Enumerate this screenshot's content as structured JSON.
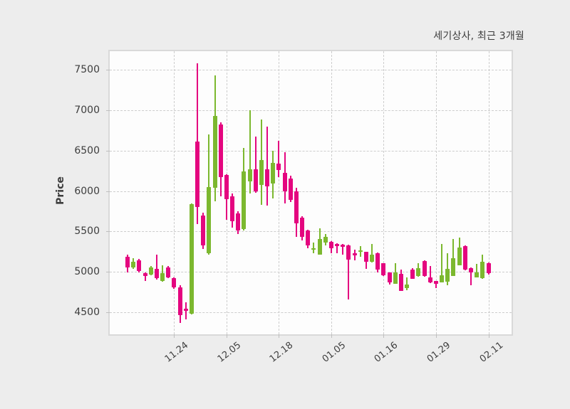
{
  "title": "세기상사, 최근 3개월",
  "y_axis": {
    "label": "Price"
  },
  "chart_data": {
    "type": "candlestick",
    "title": "세기상사, 최근 3개월",
    "ylabel": "Price",
    "ylim": [
      4230,
      7730
    ],
    "grid": true,
    "y_ticks": [
      4500,
      5000,
      5500,
      6000,
      6500,
      7000,
      7500
    ],
    "x_tick_labels": [
      "11.24",
      "12.05",
      "12.18",
      "01.05",
      "01.16",
      "01.29",
      "02.11"
    ],
    "x_tick_indices": [
      8,
      17,
      26,
      35,
      44,
      53,
      62
    ],
    "colors": {
      "up": "#7cb82f",
      "down": "#e4067f"
    },
    "ohlc_order": [
      "open",
      "high",
      "low",
      "close"
    ],
    "ohlc": [
      [
        5190,
        5215,
        4995,
        5055
      ],
      [
        5055,
        5170,
        5035,
        5125
      ],
      [
        5145,
        5160,
        4995,
        5010
      ],
      [
        4980,
        4990,
        4890,
        4950
      ],
      [
        4965,
        5070,
        4955,
        5055
      ],
      [
        5040,
        5215,
        4905,
        4920
      ],
      [
        4890,
        5080,
        4880,
        4980
      ],
      [
        5055,
        5070,
        4925,
        4935
      ],
      [
        4920,
        4930,
        4790,
        4810
      ],
      [
        4810,
        4835,
        4365,
        4465
      ],
      [
        4545,
        4620,
        4410,
        4520
      ],
      [
        4480,
        5845,
        4470,
        5835
      ],
      [
        6610,
        7580,
        5595,
        5805
      ],
      [
        5700,
        5730,
        5280,
        5330
      ],
      [
        5230,
        6700,
        5215,
        6050
      ],
      [
        6040,
        7430,
        5875,
        6930
      ],
      [
        6820,
        6845,
        5935,
        6175
      ],
      [
        6195,
        6205,
        5640,
        5900
      ],
      [
        5935,
        5965,
        5550,
        5625
      ],
      [
        5725,
        5745,
        5465,
        5510
      ],
      [
        5525,
        6530,
        5510,
        6245
      ],
      [
        6120,
        7000,
        5965,
        6265
      ],
      [
        6265,
        6675,
        5980,
        5995
      ],
      [
        6075,
        6880,
        5830,
        6380
      ],
      [
        6265,
        6800,
        5820,
        6060
      ],
      [
        6090,
        6500,
        5905,
        6345
      ],
      [
        6340,
        6620,
        6170,
        6260
      ],
      [
        6220,
        6480,
        5850,
        5995
      ],
      [
        6155,
        6185,
        5860,
        5890
      ],
      [
        5995,
        6040,
        5435,
        5600
      ],
      [
        5670,
        5685,
        5390,
        5435
      ],
      [
        5510,
        5520,
        5290,
        5330
      ],
      [
        5285,
        5360,
        5230,
        5295
      ],
      [
        5215,
        5540,
        5210,
        5405
      ],
      [
        5360,
        5465,
        5330,
        5435
      ],
      [
        5375,
        5380,
        5230,
        5290
      ],
      [
        5345,
        5350,
        5230,
        5320
      ],
      [
        5340,
        5345,
        5215,
        5310
      ],
      [
        5330,
        5335,
        4655,
        5155
      ],
      [
        5230,
        5275,
        5140,
        5200
      ],
      [
        5255,
        5320,
        5185,
        5265
      ],
      [
        5245,
        5250,
        5040,
        5125
      ],
      [
        5125,
        5345,
        5120,
        5215
      ],
      [
        5230,
        5235,
        4995,
        5025
      ],
      [
        5105,
        5110,
        4950,
        4960
      ],
      [
        4990,
        4995,
        4840,
        4870
      ],
      [
        4855,
        5105,
        4850,
        4990
      ],
      [
        4975,
        5030,
        4760,
        4765
      ],
      [
        4795,
        4930,
        4770,
        4840
      ],
      [
        5030,
        5045,
        4910,
        4915
      ],
      [
        4945,
        5105,
        4940,
        5045
      ],
      [
        5135,
        5140,
        4940,
        4945
      ],
      [
        4930,
        5075,
        4865,
        4870
      ],
      [
        4885,
        4890,
        4795,
        4855
      ],
      [
        4870,
        5345,
        4865,
        4960
      ],
      [
        4875,
        5230,
        4830,
        5040
      ],
      [
        4950,
        5405,
        4945,
        5170
      ],
      [
        5080,
        5425,
        5080,
        5300
      ],
      [
        5320,
        5325,
        5015,
        5025
      ],
      [
        5045,
        5050,
        4830,
        4995
      ],
      [
        4935,
        5095,
        4930,
        4995
      ],
      [
        4920,
        5215,
        4915,
        5125
      ],
      [
        5110,
        5115,
        4965,
        4980
      ]
    ]
  }
}
